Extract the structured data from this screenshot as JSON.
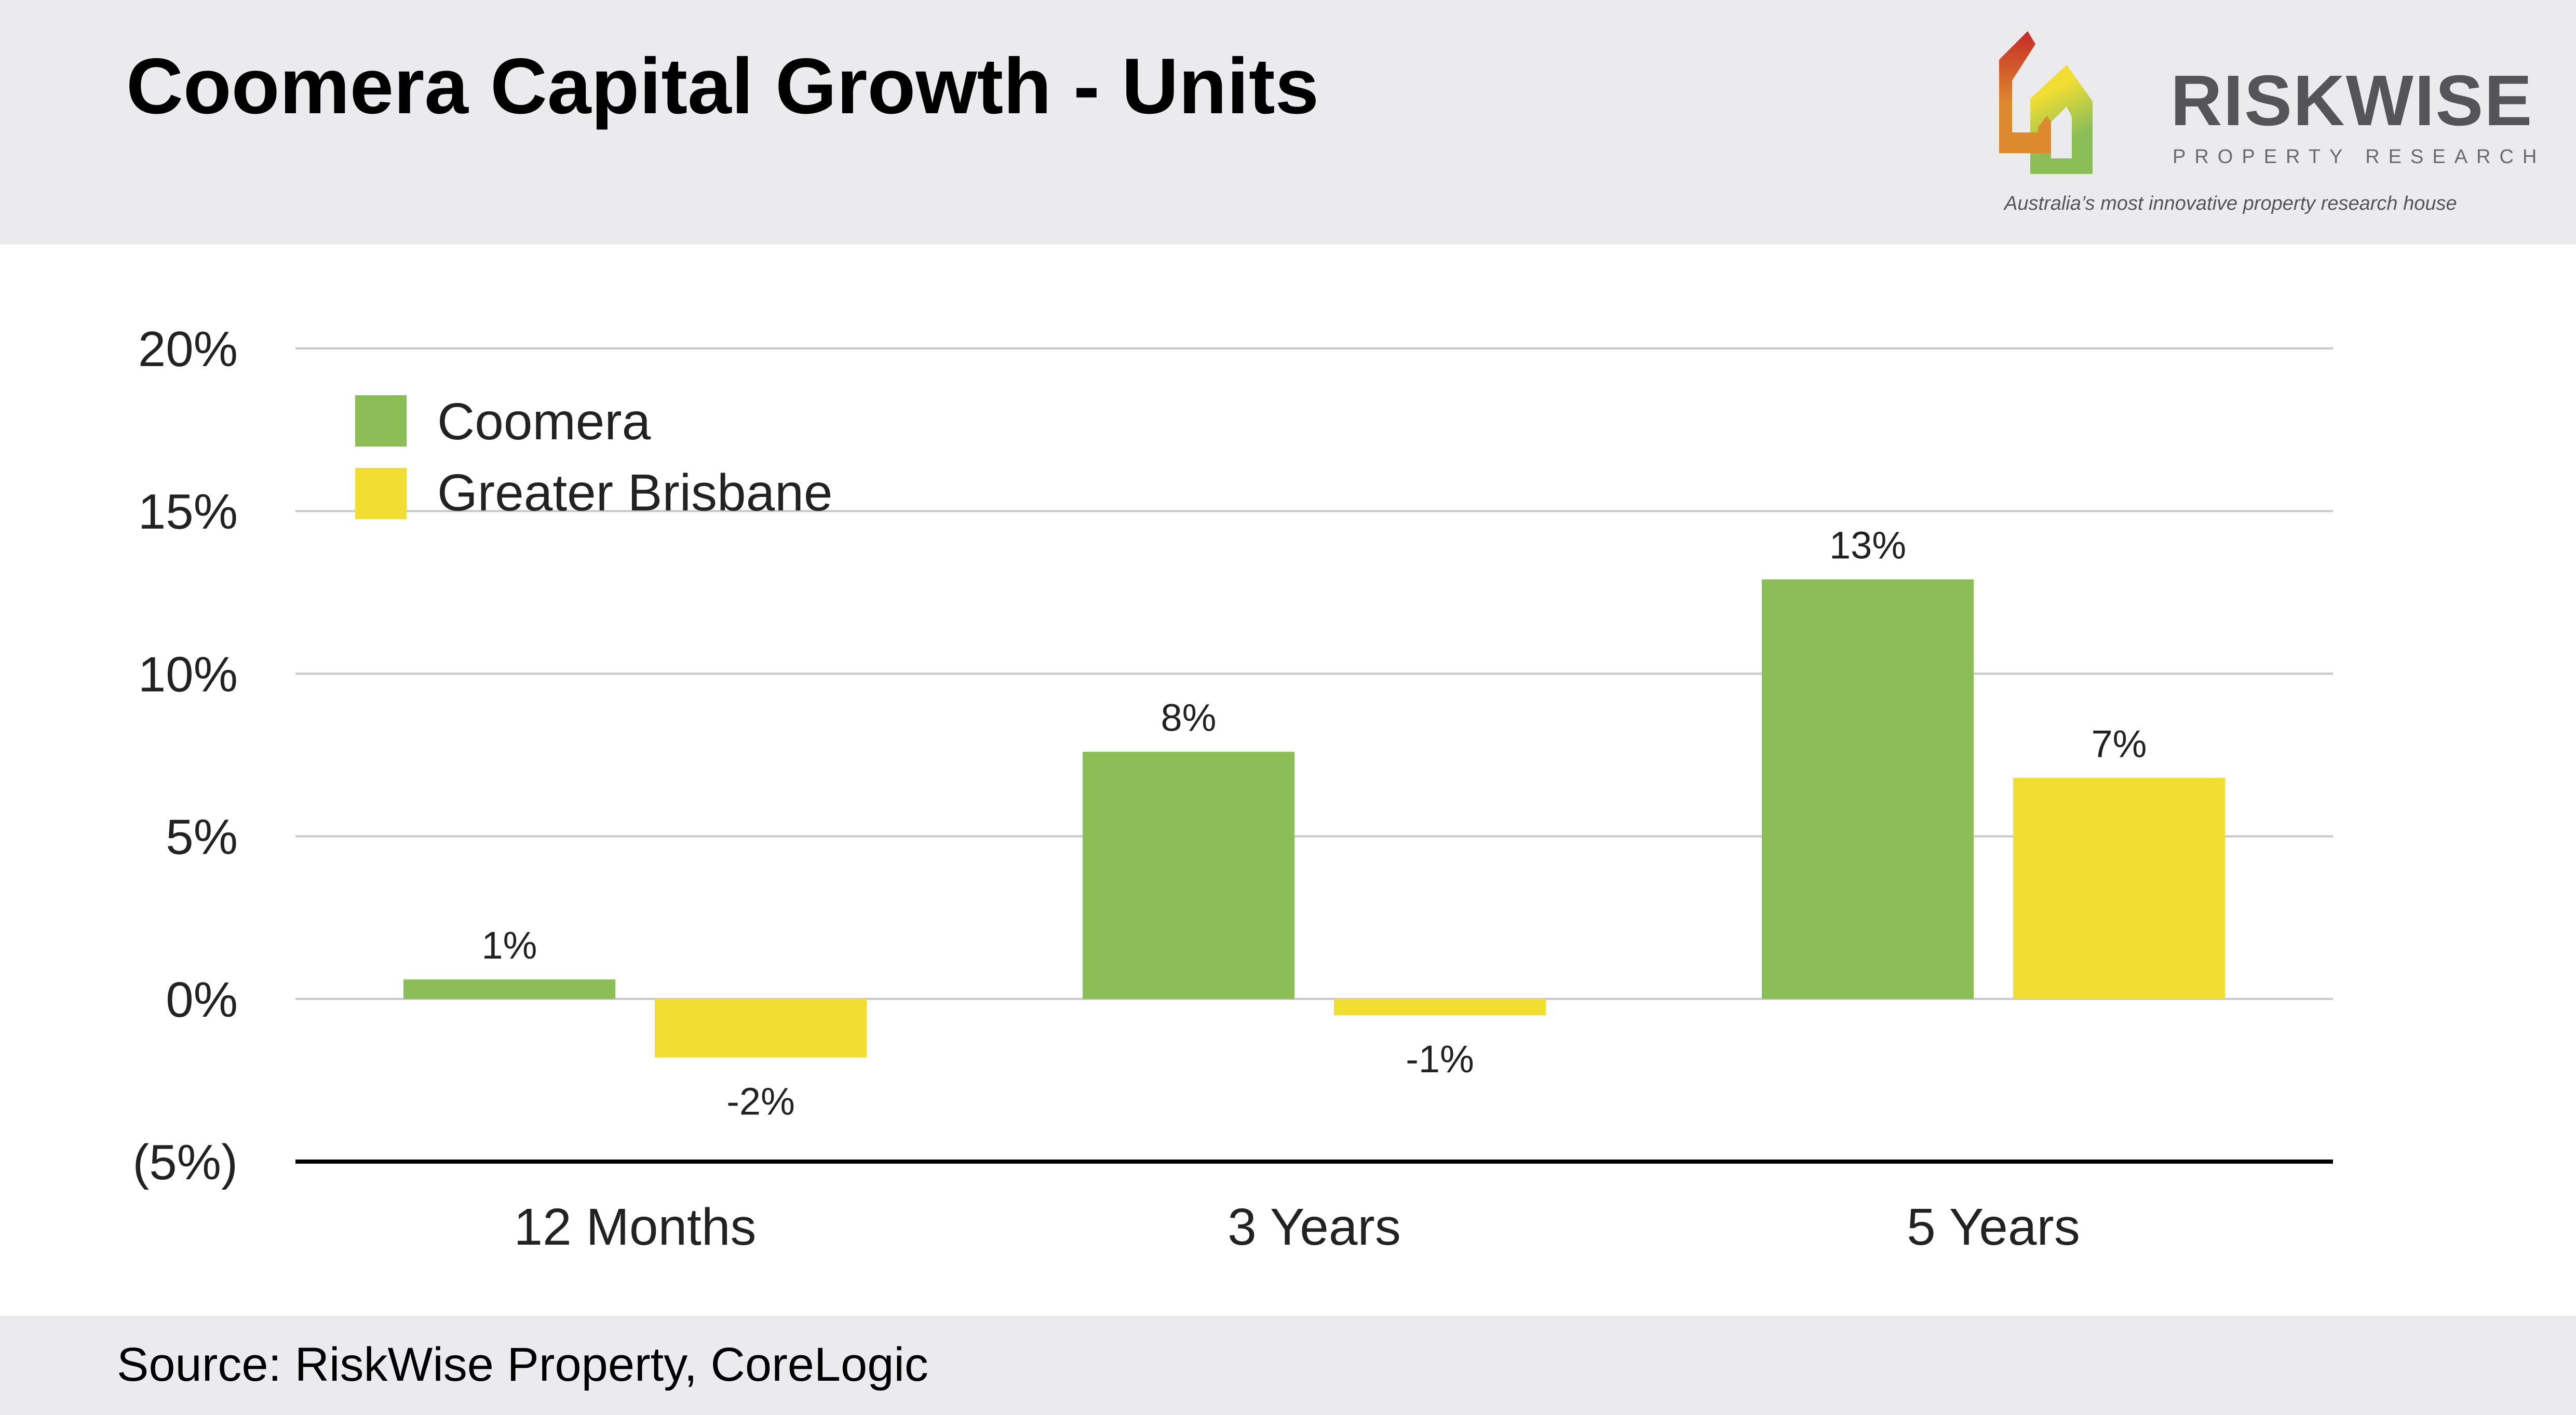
{
  "header": {
    "title": "Coomera Capital Growth - Units"
  },
  "logo": {
    "brand": "RISKWISE",
    "subtitle": "PROPERTY RESEARCH",
    "tagline": "Australia’s most innovative property research house"
  },
  "footer": {
    "source": "Source: RiskWise Property, CoreLogic"
  },
  "colors": {
    "coomera": "#8cbe57",
    "brisbane": "#f2de33",
    "header_bg": "#ebebed"
  },
  "chart_data": {
    "type": "bar",
    "title": "Coomera Capital Growth - Units",
    "categories": [
      "12 Months",
      "3 Years",
      "5 Years"
    ],
    "series": [
      {
        "name": "Coomera",
        "values": [
          0.6,
          7.6,
          12.9
        ],
        "labels": [
          "1%",
          "8%",
          "13%"
        ]
      },
      {
        "name": "Greater Brisbane",
        "values": [
          -1.8,
          -0.5,
          6.8
        ],
        "labels": [
          "-2%",
          "-1%",
          "7%"
        ]
      }
    ],
    "ylim": [
      -5,
      20
    ],
    "yticks": [
      20,
      15,
      10,
      5,
      0,
      -5
    ],
    "ytick_labels": [
      "20%",
      "15%",
      "10%",
      "5%",
      "0%",
      "(5%)"
    ],
    "grid": true,
    "legend": "top-left",
    "xlabel": "",
    "ylabel": ""
  }
}
